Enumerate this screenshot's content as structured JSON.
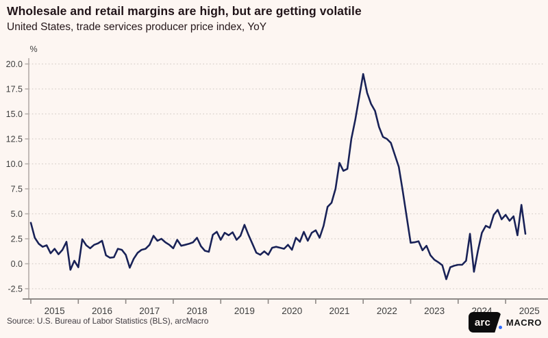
{
  "header": {
    "title": "Wholesale and retail margins are high, but are getting volatile",
    "subtitle": "United States, trade services producer price index, YoY"
  },
  "footer": {
    "source": "Source: U.S. Bureau of Labor Statistics (BLS), arcMacro",
    "logo_box_text": "arc",
    "logo_wordmark": "MACRO"
  },
  "colors": {
    "background": "#fdf6f2",
    "line": "#192257",
    "grid": "#d6cfc9",
    "y_axis": "#b3aca8",
    "x_axis": "#8d8885",
    "tick_text": "#3d3d3d",
    "title_text": "#211419",
    "logo_accent": "#2e6bfe"
  },
  "chart_data": {
    "type": "line",
    "title": "Wholesale and retail margins are high, but are getting volatile",
    "subtitle": "United States, trade services producer price index, YoY",
    "unit_label": "%",
    "legend": "none",
    "grid": "horizontal-dotted",
    "frequency": "monthly",
    "start": {
      "year": 2015,
      "month": 1
    },
    "end": {
      "year": 2025,
      "month": 6
    },
    "ylim": [
      -2.5,
      20.0
    ],
    "y_ticks": [
      20.0,
      17.5,
      15.0,
      12.5,
      10.0,
      7.5,
      5.0,
      2.5,
      0.0,
      -2.5
    ],
    "y_tick_labels": [
      "20.0",
      "17.5",
      "15.0",
      "12.5",
      "10.0",
      "7.5",
      "5.0",
      "2.5",
      "0.0",
      "-2.5"
    ],
    "x_tick_labels": [
      "2015",
      "2016",
      "2017",
      "2018",
      "2019",
      "2020",
      "2021",
      "2022",
      "2023",
      "2024",
      "2025"
    ],
    "series": [
      {
        "name": "Trade services producer price index, YoY (%)",
        "color": "#192257",
        "values": [
          4.1,
          2.6,
          2.0,
          1.7,
          1.85,
          1.05,
          1.5,
          0.95,
          1.4,
          2.2,
          -0.6,
          0.3,
          -0.35,
          2.45,
          1.85,
          1.55,
          1.9,
          2.05,
          2.3,
          0.85,
          0.6,
          0.65,
          1.5,
          1.4,
          0.9,
          -0.4,
          0.5,
          1.1,
          1.4,
          1.5,
          1.9,
          2.8,
          2.3,
          2.5,
          2.15,
          1.9,
          1.55,
          2.4,
          1.8,
          1.9,
          2.0,
          2.15,
          2.6,
          1.75,
          1.3,
          1.2,
          2.9,
          3.2,
          2.4,
          3.1,
          2.85,
          3.15,
          2.4,
          2.8,
          3.9,
          2.9,
          2.0,
          1.1,
          0.9,
          1.25,
          0.9,
          1.6,
          1.7,
          1.6,
          1.5,
          1.9,
          1.4,
          2.6,
          2.2,
          3.2,
          2.3,
          3.1,
          3.35,
          2.6,
          3.8,
          5.7,
          6.1,
          7.5,
          10.1,
          9.3,
          9.5,
          12.5,
          14.4,
          16.7,
          19.0,
          17.1,
          16.0,
          15.3,
          13.7,
          12.7,
          12.5,
          12.1,
          10.9,
          9.7,
          7.3,
          4.7,
          2.1,
          2.15,
          2.25,
          1.35,
          1.8,
          0.85,
          0.4,
          0.15,
          -0.15,
          -1.55,
          -0.35,
          -0.2,
          -0.1,
          -0.1,
          0.3,
          3.0,
          -0.8,
          1.3,
          3.1,
          3.8,
          3.6,
          4.9,
          5.4,
          4.45,
          4.9,
          4.3,
          4.75,
          2.85,
          5.9,
          3.0
        ]
      }
    ]
  }
}
